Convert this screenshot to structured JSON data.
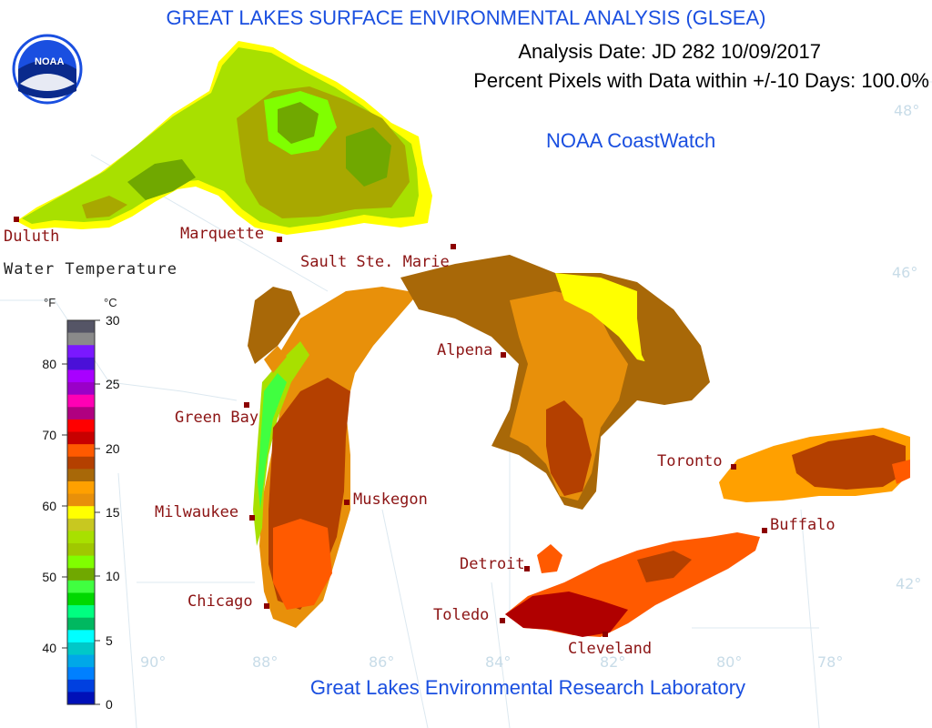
{
  "header": {
    "title": "GREAT LAKES SURFACE ENVIRONMENTAL ANALYSIS (GLSEA)",
    "analysis_date": "Analysis Date:  JD 282 10/09/2017",
    "percent_pixels": "Percent Pixels with Data within +/-10 Days: 100.0%",
    "coastwatch": "NOAA CoastWatch",
    "lab": "Great Lakes Environmental Research Laboratory",
    "logo_text": "NOAA"
  },
  "legend": {
    "title": "Water Temperature",
    "unit_f": "°F",
    "unit_c": "°C",
    "f_ticks": [
      "80",
      "70",
      "60",
      "50",
      "40"
    ],
    "c_ticks": [
      "30",
      "25",
      "20",
      "15",
      "10",
      "5",
      "0"
    ],
    "color_stops": [
      "#555566",
      "#8a8a8a",
      "#7a18ff",
      "#4a10d8",
      "#a800ff",
      "#9a00c8",
      "#ff00b4",
      "#b00080",
      "#ff0000",
      "#c80000",
      "#ff5a00",
      "#b44000",
      "#a86808",
      "#ffa000",
      "#e8900a",
      "#ffff00",
      "#c8c820",
      "#a8e000",
      "#a0c800",
      "#80ff00",
      "#70a800",
      "#40ff40",
      "#00d800",
      "#00ff80",
      "#00b860",
      "#00ffff",
      "#00c8c8",
      "#00a8e8",
      "#0080ff",
      "#0040e0",
      "#0010b8"
    ]
  },
  "cities": [
    {
      "name": "Duluth"
    },
    {
      "name": "Marquette"
    },
    {
      "name": "Sault Ste. Marie"
    },
    {
      "name": "Green Bay"
    },
    {
      "name": "Alpena"
    },
    {
      "name": "Milwaukee"
    },
    {
      "name": "Muskegon"
    },
    {
      "name": "Chicago"
    },
    {
      "name": "Toronto"
    },
    {
      "name": "Buffalo"
    },
    {
      "name": "Detroit"
    },
    {
      "name": "Toledo"
    },
    {
      "name": "Cleveland"
    }
  ],
  "graticule": {
    "lat": [
      "48°",
      "46°",
      "42°"
    ],
    "lon": [
      "90°",
      "88°",
      "86°",
      "84°",
      "82°",
      "80°",
      "78°"
    ]
  }
}
